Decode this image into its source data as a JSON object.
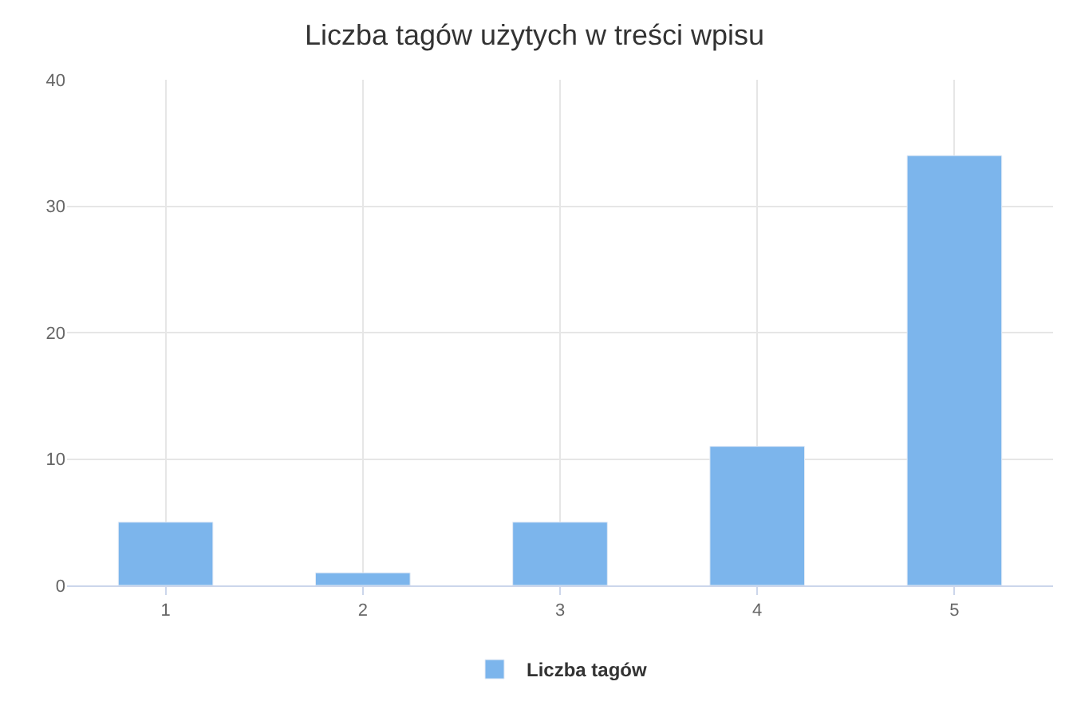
{
  "chart_data": {
    "type": "bar",
    "title": "Liczba tagów użytych w treści wpisu",
    "categories": [
      "1",
      "2",
      "3",
      "4",
      "5"
    ],
    "series": [
      {
        "name": "Liczba tagów",
        "color": "#7cb5ec",
        "values": [
          5,
          1,
          5,
          11,
          34
        ]
      }
    ],
    "ylim": [
      0,
      40
    ],
    "yticks": [
      0,
      10,
      20,
      30,
      40
    ],
    "grid": true,
    "legend": "bottom"
  }
}
